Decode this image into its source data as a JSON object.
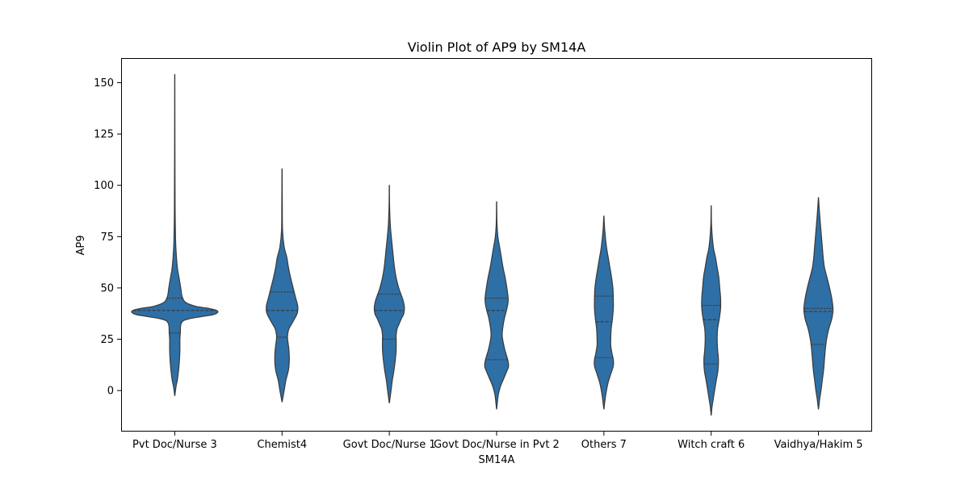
{
  "chart_data": {
    "type": "violin",
    "title": "Violin Plot of AP9 by SM14A",
    "xlabel": "SM14A",
    "ylabel": "AP9",
    "ylim": [
      -20,
      162
    ],
    "yticks": [
      0,
      25,
      50,
      75,
      100,
      125,
      150
    ],
    "grid": false,
    "legend": "none",
    "color": "#2e6fa5",
    "edge_color": "#3a3a3a",
    "categories": [
      "Pvt Doc/Nurse 3",
      "Chemist4",
      "Govt Doc/Nurse 1",
      "Govt Doc/Nurse in Pvt 2",
      "Others 7",
      "Witch craft 6",
      "Vaidhya/Hakim 5"
    ],
    "violins": [
      {
        "category": "Pvt Doc/Nurse 3",
        "quartiles": [
          28,
          39,
          45
        ],
        "profile": [
          [
            154,
            0.002
          ],
          [
            120,
            0.004
          ],
          [
            90,
            0.008
          ],
          [
            78,
            0.015
          ],
          [
            70,
            0.025
          ],
          [
            60,
            0.06
          ],
          [
            55,
            0.1
          ],
          [
            50,
            0.14
          ],
          [
            46,
            0.17
          ],
          [
            43,
            0.25
          ],
          [
            41,
            0.5
          ],
          [
            40,
            0.8
          ],
          [
            39,
            0.98
          ],
          [
            38,
            1.0
          ],
          [
            37,
            0.9
          ],
          [
            36,
            0.62
          ],
          [
            35,
            0.35
          ],
          [
            34,
            0.2
          ],
          [
            32,
            0.14
          ],
          [
            28,
            0.13
          ],
          [
            25,
            0.12
          ],
          [
            20,
            0.12
          ],
          [
            15,
            0.11
          ],
          [
            10,
            0.09
          ],
          [
            5,
            0.06
          ],
          [
            2,
            0.03
          ],
          [
            -2.5,
            0.002
          ]
        ]
      },
      {
        "category": "Chemist4",
        "quartiles": [
          26,
          39,
          48
        ],
        "profile": [
          [
            108,
            0.002
          ],
          [
            90,
            0.006
          ],
          [
            78,
            0.012
          ],
          [
            70,
            0.05
          ],
          [
            65,
            0.11
          ],
          [
            60,
            0.15
          ],
          [
            55,
            0.2
          ],
          [
            50,
            0.26
          ],
          [
            45,
            0.32
          ],
          [
            42,
            0.36
          ],
          [
            40,
            0.37
          ],
          [
            38,
            0.36
          ],
          [
            36,
            0.32
          ],
          [
            33,
            0.24
          ],
          [
            30,
            0.16
          ],
          [
            27,
            0.13
          ],
          [
            25,
            0.13
          ],
          [
            20,
            0.16
          ],
          [
            15,
            0.17
          ],
          [
            10,
            0.15
          ],
          [
            5,
            0.09
          ],
          [
            0,
            0.05
          ],
          [
            -5.5,
            0.002
          ]
        ]
      },
      {
        "category": "Govt Doc/Nurse 1",
        "quartiles": [
          25,
          39,
          47
        ],
        "profile": [
          [
            100,
            0.002
          ],
          [
            90,
            0.006
          ],
          [
            80,
            0.025
          ],
          [
            70,
            0.07
          ],
          [
            60,
            0.12
          ],
          [
            55,
            0.16
          ],
          [
            50,
            0.22
          ],
          [
            47,
            0.27
          ],
          [
            44,
            0.32
          ],
          [
            41,
            0.35
          ],
          [
            39,
            0.35
          ],
          [
            37,
            0.33
          ],
          [
            35,
            0.28
          ],
          [
            32,
            0.22
          ],
          [
            30,
            0.18
          ],
          [
            27,
            0.16
          ],
          [
            25,
            0.16
          ],
          [
            20,
            0.16
          ],
          [
            15,
            0.14
          ],
          [
            10,
            0.11
          ],
          [
            5,
            0.07
          ],
          [
            0,
            0.04
          ],
          [
            -6,
            0.002
          ]
        ]
      },
      {
        "category": "Govt Doc/Nurse in Pvt 2",
        "quartiles": [
          15,
          39,
          45
        ],
        "profile": [
          [
            92,
            0.002
          ],
          [
            82,
            0.008
          ],
          [
            75,
            0.03
          ],
          [
            70,
            0.07
          ],
          [
            65,
            0.11
          ],
          [
            60,
            0.15
          ],
          [
            55,
            0.2
          ],
          [
            50,
            0.24
          ],
          [
            45,
            0.27
          ],
          [
            42,
            0.26
          ],
          [
            39,
            0.23
          ],
          [
            35,
            0.18
          ],
          [
            30,
            0.14
          ],
          [
            27,
            0.13
          ],
          [
            25,
            0.14
          ],
          [
            20,
            0.19
          ],
          [
            15,
            0.26
          ],
          [
            12,
            0.28
          ],
          [
            10,
            0.25
          ],
          [
            6,
            0.17
          ],
          [
            2,
            0.09
          ],
          [
            -2,
            0.04
          ],
          [
            -9,
            0.002
          ]
        ]
      },
      {
        "category": "Others 7",
        "quartiles": [
          16,
          33.5,
          46
        ],
        "profile": [
          [
            85,
            0.002
          ],
          [
            78,
            0.02
          ],
          [
            70,
            0.06
          ],
          [
            65,
            0.1
          ],
          [
            60,
            0.14
          ],
          [
            55,
            0.18
          ],
          [
            50,
            0.21
          ],
          [
            45,
            0.22
          ],
          [
            40,
            0.22
          ],
          [
            35,
            0.2
          ],
          [
            30,
            0.17
          ],
          [
            25,
            0.16
          ],
          [
            22,
            0.16
          ],
          [
            18,
            0.19
          ],
          [
            15,
            0.22
          ],
          [
            12,
            0.22
          ],
          [
            8,
            0.16
          ],
          [
            4,
            0.1
          ],
          [
            0,
            0.06
          ],
          [
            -4,
            0.03
          ],
          [
            -9,
            0.002
          ]
        ]
      },
      {
        "category": "Witch craft 6",
        "quartiles": [
          13,
          34.5,
          41.5
        ],
        "profile": [
          [
            90,
            0.002
          ],
          [
            80,
            0.01
          ],
          [
            70,
            0.05
          ],
          [
            65,
            0.1
          ],
          [
            60,
            0.14
          ],
          [
            55,
            0.18
          ],
          [
            50,
            0.2
          ],
          [
            45,
            0.22
          ],
          [
            40,
            0.22
          ],
          [
            35,
            0.19
          ],
          [
            30,
            0.15
          ],
          [
            25,
            0.14
          ],
          [
            20,
            0.15
          ],
          [
            15,
            0.17
          ],
          [
            10,
            0.16
          ],
          [
            5,
            0.12
          ],
          [
            0,
            0.08
          ],
          [
            -4,
            0.05
          ],
          [
            -8,
            0.02
          ],
          [
            -12,
            0.002
          ]
        ]
      },
      {
        "category": "Vaidhya/Hakim 5",
        "quartiles": [
          22.5,
          38.5,
          40
        ],
        "profile": [
          [
            94,
            0.002
          ],
          [
            88,
            0.02
          ],
          [
            80,
            0.05
          ],
          [
            75,
            0.07
          ],
          [
            70,
            0.09
          ],
          [
            65,
            0.11
          ],
          [
            60,
            0.14
          ],
          [
            55,
            0.2
          ],
          [
            50,
            0.26
          ],
          [
            45,
            0.31
          ],
          [
            40,
            0.34
          ],
          [
            37,
            0.33
          ],
          [
            34,
            0.3
          ],
          [
            30,
            0.24
          ],
          [
            25,
            0.19
          ],
          [
            20,
            0.16
          ],
          [
            15,
            0.14
          ],
          [
            10,
            0.12
          ],
          [
            5,
            0.09
          ],
          [
            0,
            0.06
          ],
          [
            -4,
            0.03
          ],
          [
            -9,
            0.002
          ]
        ]
      }
    ]
  }
}
